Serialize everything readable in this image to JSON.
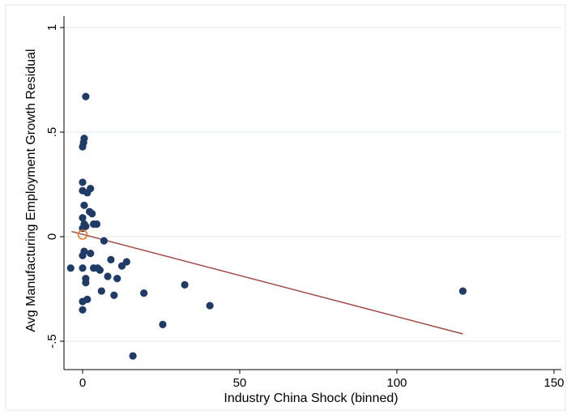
{
  "chart_data": {
    "type": "scatter",
    "title": "",
    "xlabel": "Industry China Shock (binned)",
    "ylabel": "Avg Manufacturing Employment Growth Residual",
    "xlim": [
      -6,
      152
    ],
    "ylim": [
      -0.6,
      1.02
    ],
    "x_ticks": [
      0,
      50,
      100,
      150
    ],
    "y_ticks": [
      -0.5,
      0,
      0.5,
      1
    ],
    "x_tick_labels": [
      "0",
      "50",
      "100",
      "150"
    ],
    "y_tick_labels": [
      "-.5",
      "0",
      ".5",
      "1"
    ],
    "grid": "horizontal",
    "legend": "none",
    "colors": {
      "points": "#1f3b66",
      "fit_line": "#a04848",
      "highlight": "#e8792b",
      "grid": "#dfe9ea",
      "frame": "#e6e6e6"
    },
    "points": [
      {
        "x": 1.0,
        "y": 0.67
      },
      {
        "x": 0.5,
        "y": 0.47
      },
      {
        "x": 0.3,
        "y": 0.45
      },
      {
        "x": 0.0,
        "y": 0.43
      },
      {
        "x": 0.0,
        "y": 0.26
      },
      {
        "x": 2.5,
        "y": 0.23
      },
      {
        "x": 0.0,
        "y": 0.22
      },
      {
        "x": 1.5,
        "y": 0.21
      },
      {
        "x": 0.5,
        "y": 0.15
      },
      {
        "x": 2.2,
        "y": 0.12
      },
      {
        "x": 3.0,
        "y": 0.11
      },
      {
        "x": 0.0,
        "y": 0.09
      },
      {
        "x": 3.5,
        "y": 0.06
      },
      {
        "x": 4.5,
        "y": 0.06
      },
      {
        "x": 0.5,
        "y": 0.06
      },
      {
        "x": 0.0,
        "y": 0.04
      },
      {
        "x": 1.0,
        "y": 0.05
      },
      {
        "x": 6.8,
        "y": -0.02
      },
      {
        "x": 0.5,
        "y": -0.07
      },
      {
        "x": 2.5,
        "y": -0.08
      },
      {
        "x": 0.0,
        "y": -0.09
      },
      {
        "x": 9.0,
        "y": -0.11
      },
      {
        "x": 14.0,
        "y": -0.12
      },
      {
        "x": 12.5,
        "y": -0.14
      },
      {
        "x": -3.8,
        "y": -0.15
      },
      {
        "x": 0.0,
        "y": -0.15
      },
      {
        "x": 3.5,
        "y": -0.15
      },
      {
        "x": 4.8,
        "y": -0.15
      },
      {
        "x": 5.5,
        "y": -0.16
      },
      {
        "x": 8.0,
        "y": -0.19
      },
      {
        "x": 11.0,
        "y": -0.2
      },
      {
        "x": 1.0,
        "y": -0.2
      },
      {
        "x": 1.0,
        "y": -0.22
      },
      {
        "x": 32.5,
        "y": -0.23
      },
      {
        "x": 6.0,
        "y": -0.26
      },
      {
        "x": 121.0,
        "y": -0.26
      },
      {
        "x": 19.5,
        "y": -0.27
      },
      {
        "x": 10.0,
        "y": -0.28
      },
      {
        "x": 1.5,
        "y": -0.3
      },
      {
        "x": 0.0,
        "y": -0.31
      },
      {
        "x": 40.5,
        "y": -0.33
      },
      {
        "x": 0.0,
        "y": -0.35
      },
      {
        "x": 25.5,
        "y": -0.42
      },
      {
        "x": 16.0,
        "y": -0.57
      }
    ],
    "highlight_point": {
      "x": 0.0,
      "y": 0.01
    },
    "fit_line": {
      "x": [
        -3.5,
        121.0
      ],
      "y": [
        0.025,
        -0.465
      ]
    }
  }
}
